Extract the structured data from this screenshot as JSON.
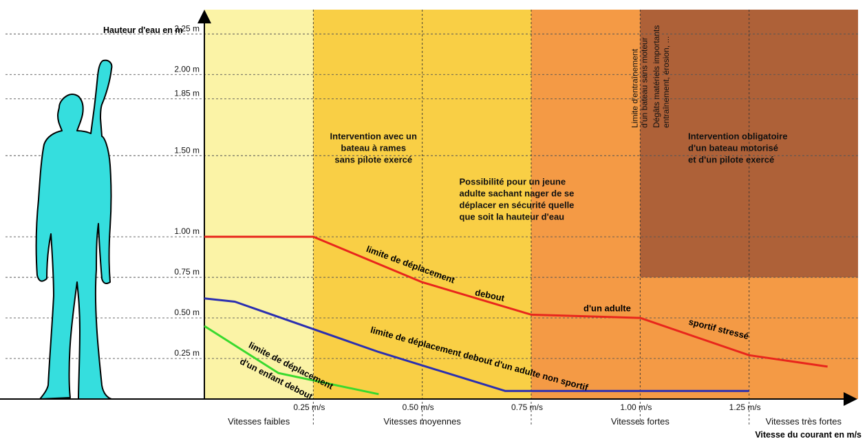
{
  "chart_data": {
    "type": "line",
    "xlabel": "Vitesse du courant en m/s",
    "ylabel": "Hauteur d'eau en m",
    "xlim": [
      0,
      1.5
    ],
    "ylim": [
      0,
      2.4
    ],
    "x_ticks": [
      {
        "value": 0.25,
        "label": "0.25 m/s"
      },
      {
        "value": 0.5,
        "label": "0.50 m/s"
      },
      {
        "value": 0.75,
        "label": "0.75 m/s"
      },
      {
        "value": 1.0,
        "label": "1.00 m/s"
      },
      {
        "value": 1.25,
        "label": "1.25 m/s"
      }
    ],
    "y_ticks": [
      {
        "value": 0.25,
        "label": "0.25 m"
      },
      {
        "value": 0.5,
        "label": "0.50 m"
      },
      {
        "value": 0.75,
        "label": "0.75 m"
      },
      {
        "value": 1.0,
        "label": "1.00 m"
      },
      {
        "value": 1.5,
        "label": "1.50 m"
      },
      {
        "value": 1.85,
        "label": "1.85 m"
      },
      {
        "value": 2.0,
        "label": "2.00 m"
      },
      {
        "value": 2.25,
        "label": "2.25 m"
      }
    ],
    "speed_bands": [
      {
        "from": 0,
        "to": 0.25,
        "label": "Vitesses  faibles",
        "color": "#fbf3a6"
      },
      {
        "from": 0.25,
        "to": 0.75,
        "label": "Vitesses  moyennes",
        "color": "#f9cf45"
      },
      {
        "from": 0.75,
        "to": 1.25,
        "label": "Vitesses    fortes",
        "color": "#f49a45"
      },
      {
        "from": 1.25,
        "to": 1.5,
        "label": "Vitesses  très fortes",
        "color": "#f49a45"
      }
    ],
    "danger_zone": {
      "x_from": 1.0,
      "x_to": 1.5,
      "y_from": 0.75,
      "y_to": 2.4,
      "color": "#ae6138"
    },
    "series": [
      {
        "color": "#e8261c",
        "points": [
          [
            0,
            1.0
          ],
          [
            0.25,
            1.0
          ],
          [
            0.5,
            0.72
          ],
          [
            0.75,
            0.52
          ],
          [
            1.0,
            0.5
          ],
          [
            1.25,
            0.27
          ],
          [
            1.43,
            0.2
          ]
        ],
        "labels": [
          {
            "text": "limite  de  déplacement",
            "at": [
              0.37,
              0.91
            ],
            "angle": 20
          },
          {
            "text": "debout",
            "at": [
              0.62,
              0.64
            ],
            "angle": 12
          },
          {
            "text": "d'un  adulte",
            "at": [
              0.87,
              0.54
            ],
            "angle": 0
          },
          {
            "text": "sportif  stressé",
            "at": [
              1.11,
              0.46
            ],
            "angle": 14
          }
        ]
      },
      {
        "color": "#2b2fb0",
        "points": [
          [
            0,
            0.62
          ],
          [
            0.07,
            0.6
          ],
          [
            0.4,
            0.29
          ],
          [
            0.69,
            0.05
          ],
          [
            1.25,
            0.05
          ]
        ],
        "labels": [
          {
            "text": "limite de déplacement debout d'un adulte non sportif",
            "at": [
              0.38,
              0.41
            ],
            "angle": 15
          }
        ]
      },
      {
        "color": "#39d92e",
        "points": [
          [
            0,
            0.45
          ],
          [
            0.17,
            0.16
          ],
          [
            0.4,
            0.03
          ]
        ],
        "labels": [
          {
            "text": "limite de déplacement",
            "at": [
              0.1,
              0.32
            ],
            "angle": 27
          },
          {
            "text": "d'un enfant debout",
            "at": [
              0.08,
              0.22
            ],
            "angle": 27
          }
        ]
      }
    ],
    "annotations": [
      {
        "lines": [
          "Intervention avec un",
          "bateau à rames",
          "sans pilote exercé"
        ],
        "x": 0.388,
        "y": 1.6,
        "anchor": "middle"
      },
      {
        "lines": [
          "Possibilité  pour un jeune",
          "adulte sachant nager de se",
          "déplacer en sécurité quelle",
          "que soit la hauteur d'eau"
        ],
        "x": 0.585,
        "y": 1.32,
        "anchor": "start"
      },
      {
        "lines": [
          "Intervention obligatoire",
          "d'un bateau motorisé",
          "et d'un pilote exercé"
        ],
        "x": 1.11,
        "y": 1.6,
        "anchor": "start"
      }
    ],
    "vertical_annotations": [
      {
        "lines": [
          "Limite  d'entraînement",
          "d'un bateau sans moteur"
        ],
        "x": 1.0
      },
      {
        "lines": [
          "Dégâts matériels  importants",
          "entraînement, érosion, ..."
        ],
        "x": 1.05
      }
    ]
  }
}
